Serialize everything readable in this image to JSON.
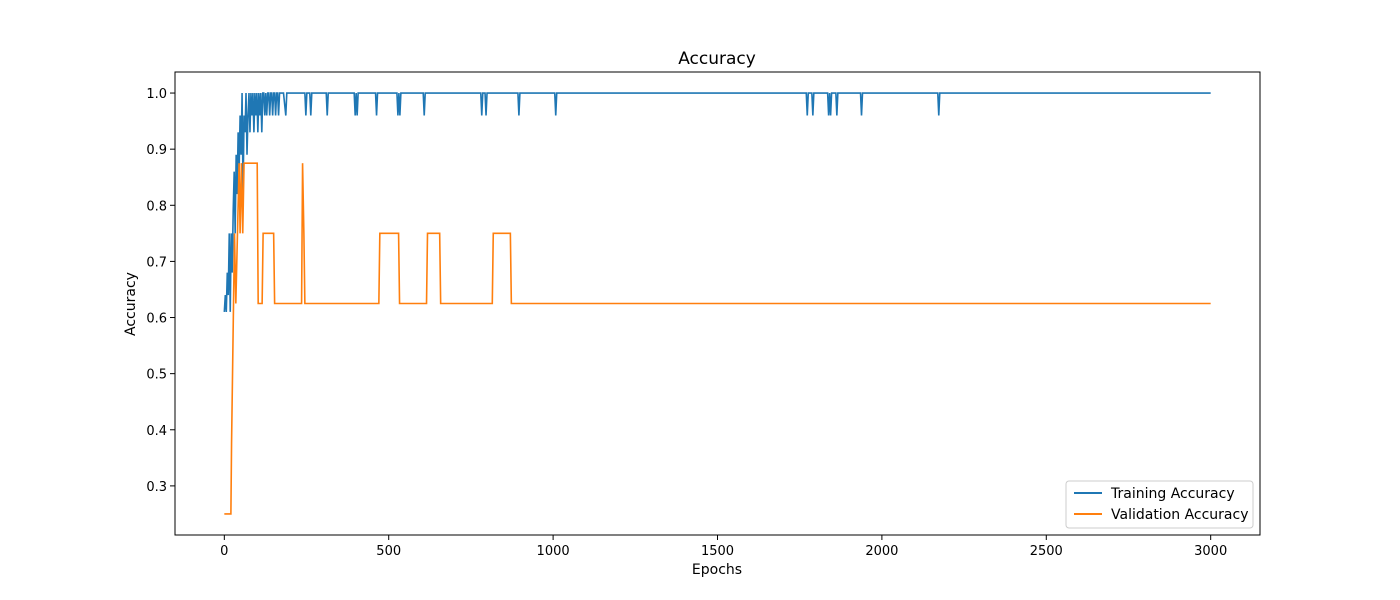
{
  "chart_data": {
    "type": "line",
    "title": "Accuracy",
    "xlabel": "Epochs",
    "ylabel": "Accuracy",
    "xlim": [
      -150,
      3150
    ],
    "ylim": [
      0.2125,
      1.0375
    ],
    "xticks": [
      0,
      500,
      1000,
      1500,
      2000,
      2500,
      3000
    ],
    "xtick_labels": [
      "0",
      "500",
      "1000",
      "1500",
      "2000",
      "2500",
      "3000"
    ],
    "yticks": [
      0.3,
      0.4,
      0.5,
      0.6,
      0.7,
      0.8,
      0.9,
      1.0
    ],
    "ytick_labels": [
      "0.3",
      "0.4",
      "0.5",
      "0.6",
      "0.7",
      "0.8",
      "0.9",
      "1.0"
    ],
    "grid": false,
    "legend_position": "lower-right",
    "series": [
      {
        "name": "Training Accuracy",
        "color": "#1f77b4",
        "x": [
          0,
          3,
          6,
          9,
          12,
          15,
          18,
          21,
          24,
          27,
          30,
          33,
          36,
          39,
          42,
          45,
          48,
          51,
          54,
          57,
          60,
          63,
          66,
          69,
          72,
          75,
          78,
          81,
          84,
          87,
          90,
          93,
          96,
          99,
          102,
          105,
          108,
          111,
          114,
          117,
          120,
          123,
          126,
          129,
          132,
          135,
          138,
          141,
          144,
          147,
          150,
          153,
          156,
          159,
          162,
          165,
          168,
          171,
          180,
          187,
          190,
          200,
          245,
          248,
          251,
          260,
          263,
          266,
          310,
          313,
          316,
          395,
          398,
          401,
          404,
          407,
          460,
          463,
          466,
          525,
          528,
          531,
          534,
          537,
          605,
          608,
          611,
          780,
          783,
          786,
          793,
          796,
          799,
          893,
          896,
          899,
          1005,
          1008,
          1011,
          1770,
          1773,
          1776,
          1787,
          1790,
          1793,
          1835,
          1838,
          1841,
          1844,
          1847,
          1860,
          1863,
          1866,
          1935,
          1938,
          1941,
          2170,
          2173,
          2176,
          3000
        ],
        "values": [
          0.61,
          0.64,
          0.61,
          0.68,
          0.64,
          0.75,
          0.61,
          0.75,
          0.68,
          0.79,
          0.86,
          0.75,
          0.89,
          0.82,
          0.93,
          0.86,
          0.96,
          0.89,
          1.0,
          0.82,
          0.96,
          0.93,
          1.0,
          0.89,
          0.96,
          1.0,
          0.93,
          1.0,
          0.96,
          1.0,
          0.93,
          1.0,
          0.96,
          1.0,
          0.93,
          1.0,
          0.96,
          1.0,
          0.93,
          1.0,
          1.0,
          0.96,
          1.0,
          0.96,
          1.0,
          1.0,
          0.96,
          1.0,
          1.0,
          0.96,
          1.0,
          1.0,
          0.96,
          1.0,
          1.0,
          0.96,
          1.0,
          1.0,
          1.0,
          0.96,
          1.0,
          1.0,
          1.0,
          0.96,
          1.0,
          1.0,
          0.96,
          1.0,
          1.0,
          0.96,
          1.0,
          1.0,
          0.96,
          1.0,
          0.96,
          1.0,
          1.0,
          0.96,
          1.0,
          1.0,
          0.96,
          1.0,
          0.96,
          1.0,
          1.0,
          0.96,
          1.0,
          1.0,
          0.96,
          1.0,
          1.0,
          0.96,
          1.0,
          1.0,
          0.96,
          1.0,
          1.0,
          0.96,
          1.0,
          1.0,
          0.96,
          1.0,
          1.0,
          0.96,
          1.0,
          1.0,
          0.96,
          1.0,
          0.96,
          1.0,
          1.0,
          0.96,
          1.0,
          1.0,
          0.96,
          1.0,
          1.0,
          0.96,
          1.0,
          1.0
        ]
      },
      {
        "name": "Validation Accuracy",
        "color": "#ff7f0e",
        "x": [
          0,
          20,
          22,
          25,
          28,
          31,
          35,
          40,
          45,
          48,
          52,
          56,
          60,
          100,
          103,
          115,
          118,
          150,
          153,
          235,
          238,
          242,
          245,
          470,
          473,
          530,
          533,
          615,
          618,
          655,
          658,
          815,
          818,
          870,
          873,
          3000
        ],
        "values": [
          0.25,
          0.25,
          0.375,
          0.5,
          0.625,
          0.75,
          0.625,
          0.75,
          0.875,
          0.75,
          0.875,
          0.75,
          0.875,
          0.875,
          0.625,
          0.625,
          0.75,
          0.75,
          0.625,
          0.625,
          0.875,
          0.75,
          0.625,
          0.625,
          0.75,
          0.75,
          0.625,
          0.625,
          0.75,
          0.75,
          0.625,
          0.625,
          0.75,
          0.75,
          0.625,
          0.625
        ]
      }
    ]
  }
}
